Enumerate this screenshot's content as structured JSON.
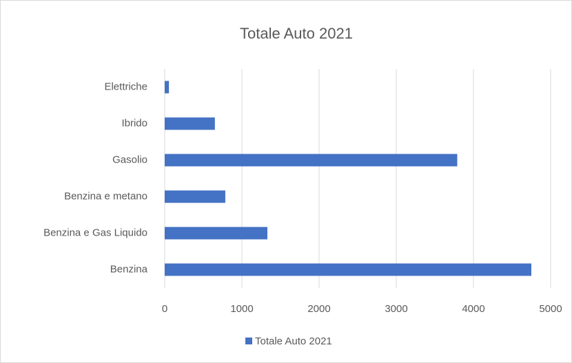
{
  "chart_data": {
    "type": "barh",
    "title": "Totale Auto 2021",
    "categories": [
      "Elettriche",
      "Ibrido",
      "Gasolio",
      "Benzina e metano",
      "Benzina e Gas Liquido",
      "Benzina"
    ],
    "series": [
      {
        "name": "Totale Auto 2021",
        "color": "#4472c4",
        "values": [
          55,
          650,
          3790,
          785,
          1330,
          4750
        ]
      }
    ],
    "xlim": [
      0,
      5000
    ],
    "xticks": [
      0,
      1000,
      2000,
      3000,
      4000,
      5000
    ],
    "grid": true,
    "legend": "bottom"
  }
}
